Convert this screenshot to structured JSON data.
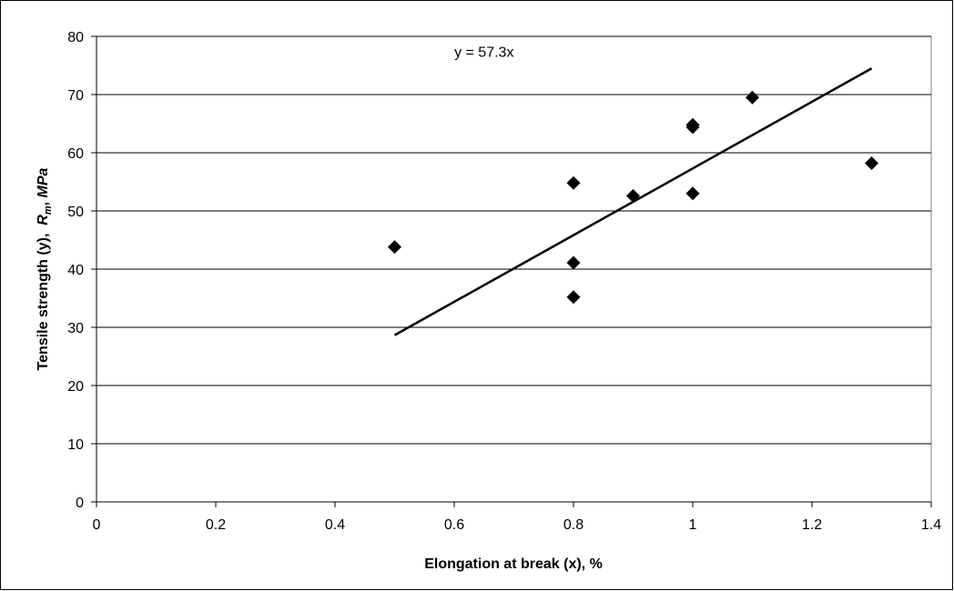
{
  "chart_data": {
    "type": "scatter",
    "title": "",
    "xlabel": "Elongation at break (x), %",
    "ylabel_parts": [
      {
        "text": "Tensile strength (y),  ",
        "italic": false
      },
      {
        "text": "R",
        "italic": true
      },
      {
        "text": "m",
        "italic": true,
        "sub": true
      },
      {
        "text": ", ",
        "italic": false
      },
      {
        "text": "MPa",
        "italic": true
      }
    ],
    "xlim": [
      0,
      1.4
    ],
    "ylim": [
      0,
      80
    ],
    "x_ticks": [
      0,
      0.2,
      0.4,
      0.6,
      0.8,
      1,
      1.2,
      1.4
    ],
    "x_tick_labels": [
      "0",
      "0.2",
      "0.4",
      "0.6",
      "0.8",
      "1",
      "1.2",
      "1.4"
    ],
    "y_ticks": [
      0,
      10,
      20,
      30,
      40,
      50,
      60,
      70,
      80
    ],
    "y_tick_labels": [
      "0",
      "10",
      "20",
      "30",
      "40",
      "50",
      "60",
      "70",
      "80"
    ],
    "grid": {
      "horizontal": true,
      "vertical": false
    },
    "legend": "none",
    "marker": "diamond",
    "marker_color": "#000000",
    "series": [
      {
        "x": [
          0.5,
          0.8,
          0.8,
          0.8,
          0.9,
          1.0,
          1.0,
          1.0,
          1.1,
          1.3
        ],
        "y": [
          43.8,
          54.8,
          41.1,
          35.2,
          52.6,
          64.8,
          64.4,
          53.0,
          69.5,
          58.2
        ]
      }
    ],
    "trendline": {
      "type": "linear",
      "slope": 57.3,
      "intercept": 0,
      "x_range": [
        0.5,
        1.3
      ],
      "color": "#000000"
    },
    "annotations": [
      {
        "text": "y = 57.3x",
        "x": 0.65,
        "y": 76.5
      }
    ]
  }
}
